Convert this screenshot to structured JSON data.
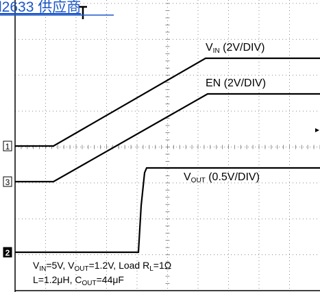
{
  "watermark": "l2633 供应商",
  "channel_markers": [
    "1",
    "3",
    "2"
  ],
  "labels": {
    "vin": {
      "main": "V",
      "sub": "IN",
      "rest": " (2V/DIV)"
    },
    "en": {
      "text": "EN (2V/DIV)"
    },
    "vout": {
      "main": "V",
      "sub": "OUT",
      "rest": " (0.5V/DIV)"
    }
  },
  "caption": {
    "line1": [
      "V",
      "IN",
      "=5V, V",
      "OUT",
      "=1.2V, Load R",
      "L",
      "=1Ω"
    ],
    "line2": [
      "L=1.2μH, C",
      "OUT",
      "=44μF"
    ]
  }
}
